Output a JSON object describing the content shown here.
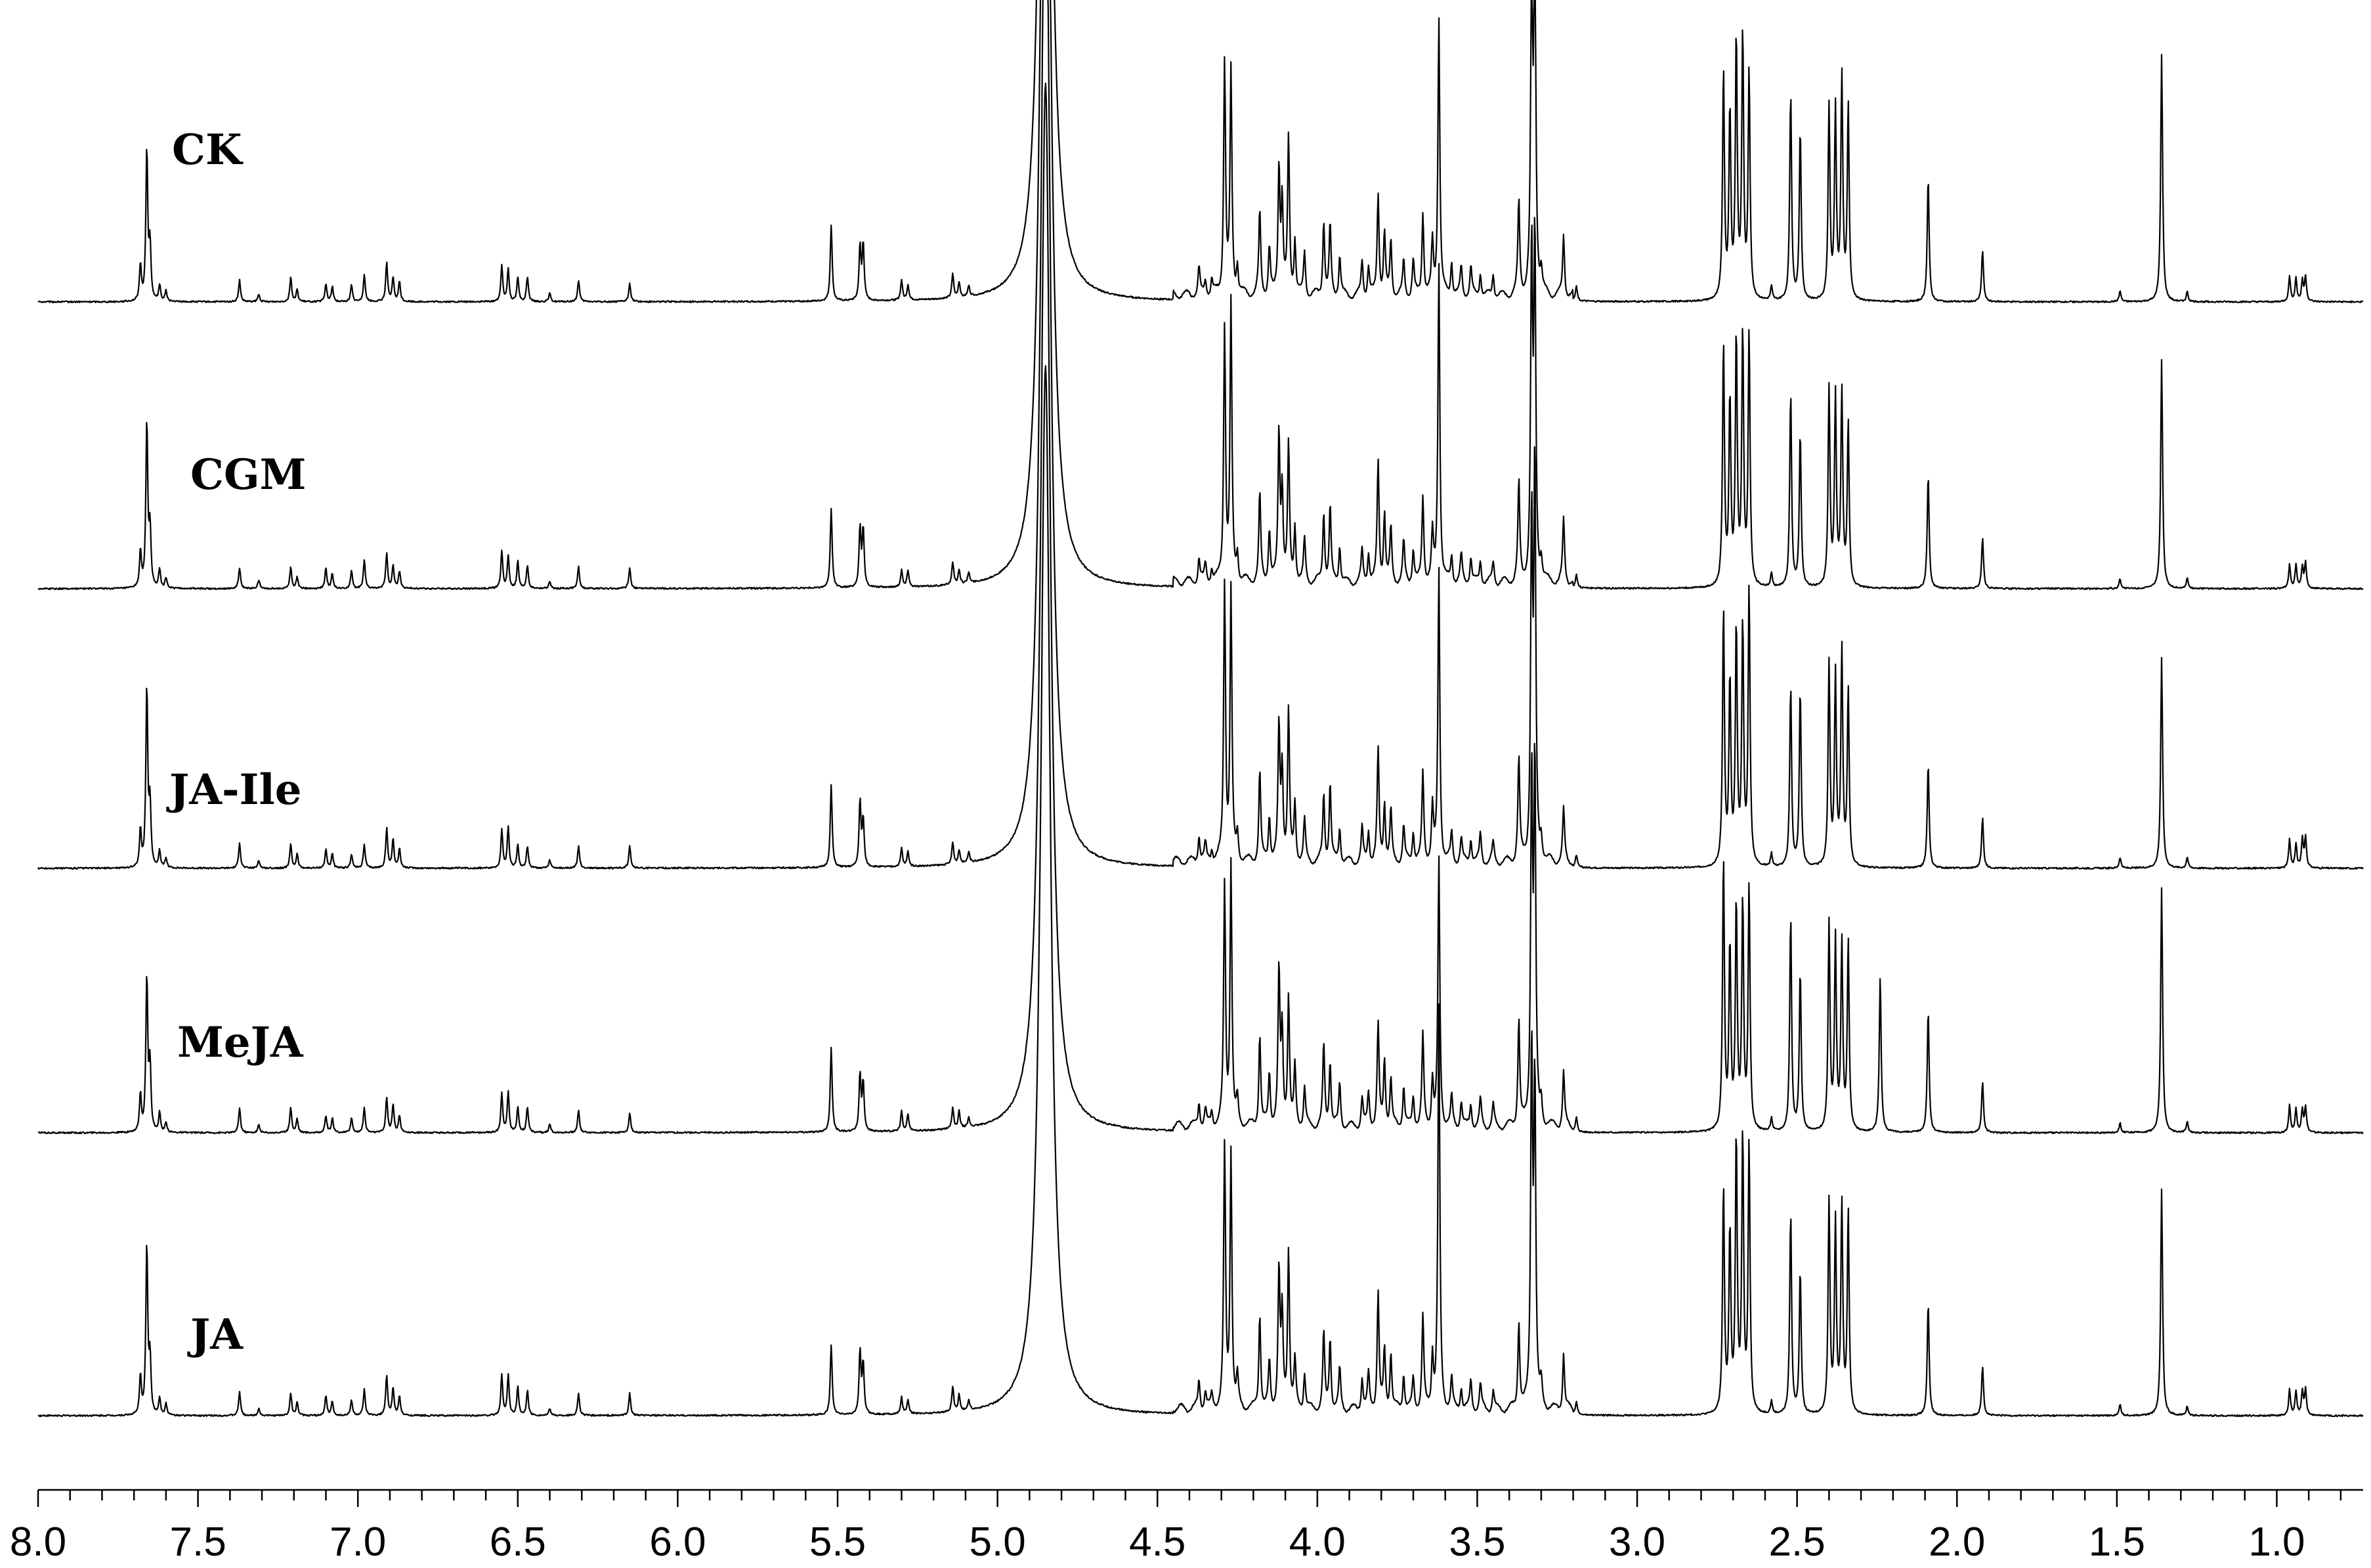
{
  "chart_data": {
    "type": "line",
    "x_axis": {
      "reversed": true,
      "range": [
        8.0,
        0.73
      ],
      "tick_labels": [
        "8.0",
        "7.5",
        "7.0",
        "6.5",
        "6.0",
        "5.5",
        "5.0",
        "4.5",
        "4.0",
        "3.5",
        "3.0",
        "2.5",
        "2.0",
        "1.5",
        "1.0"
      ],
      "tick_values": [
        8.0,
        7.5,
        7.0,
        6.5,
        6.0,
        5.5,
        5.0,
        4.5,
        4.0,
        3.5,
        3.0,
        2.5,
        2.0,
        1.5,
        1.0
      ],
      "minor_tick_step": 0.1
    },
    "grid": false,
    "series": [
      {
        "name": "CK"
      },
      {
        "name": "CGM"
      },
      {
        "name": "JA-Ile"
      },
      {
        "name": "MeJA"
      },
      {
        "name": "JA"
      }
    ],
    "peaks_common": [
      [
        7.68,
        0.14
      ],
      [
        7.66,
        0.62
      ],
      [
        7.65,
        0.22
      ],
      [
        7.62,
        0.07
      ],
      [
        7.6,
        0.04
      ],
      [
        7.37,
        0.09
      ],
      [
        7.31,
        0.03
      ],
      [
        7.21,
        0.09
      ],
      [
        7.19,
        0.05
      ],
      [
        7.1,
        0.07
      ],
      [
        7.08,
        0.06
      ],
      [
        7.02,
        0.06
      ],
      [
        6.98,
        0.1
      ],
      [
        6.91,
        0.14
      ],
      [
        6.89,
        0.1
      ],
      [
        6.87,
        0.07
      ],
      [
        6.55,
        0.14
      ],
      [
        6.53,
        0.14
      ],
      [
        6.5,
        0.1
      ],
      [
        6.47,
        0.09
      ],
      [
        6.4,
        0.03
      ],
      [
        6.31,
        0.09
      ],
      [
        6.15,
        0.08
      ],
      [
        5.52,
        0.29
      ],
      [
        5.43,
        0.23
      ],
      [
        5.42,
        0.2
      ],
      [
        5.3,
        0.07
      ],
      [
        5.28,
        0.06
      ],
      [
        5.14,
        0.09
      ],
      [
        5.12,
        0.06
      ],
      [
        5.09,
        0.04
      ],
      [
        4.37,
        0.1
      ],
      [
        4.35,
        0.06
      ],
      [
        4.33,
        0.05
      ],
      [
        4.29,
        0.95
      ],
      [
        4.27,
        0.95
      ],
      [
        4.25,
        0.1
      ],
      [
        4.18,
        0.35
      ],
      [
        4.15,
        0.2
      ],
      [
        4.12,
        0.55
      ],
      [
        4.11,
        0.35
      ],
      [
        4.09,
        0.55
      ],
      [
        4.07,
        0.2
      ],
      [
        4.04,
        0.15
      ],
      [
        3.98,
        0.28
      ],
      [
        3.96,
        0.28
      ],
      [
        3.93,
        0.15
      ],
      [
        3.86,
        0.12
      ],
      [
        3.84,
        0.12
      ],
      [
        3.81,
        0.42
      ],
      [
        3.79,
        0.25
      ],
      [
        3.77,
        0.2
      ],
      [
        3.73,
        0.15
      ],
      [
        3.7,
        0.12
      ],
      [
        3.67,
        0.32
      ],
      [
        3.64,
        0.2
      ],
      [
        3.62,
        1.1
      ],
      [
        3.58,
        0.12
      ],
      [
        3.55,
        0.1
      ],
      [
        3.52,
        0.1
      ],
      [
        3.49,
        0.1
      ],
      [
        3.45,
        0.08
      ],
      [
        3.37,
        0.38
      ],
      [
        3.33,
        1.35
      ],
      [
        3.32,
        1.35
      ],
      [
        3.3,
        0.08
      ],
      [
        3.23,
        0.22
      ],
      [
        3.19,
        0.05
      ],
      [
        2.73,
        0.95
      ],
      [
        2.71,
        0.7
      ],
      [
        2.69,
        0.95
      ],
      [
        2.67,
        0.95
      ],
      [
        2.65,
        0.95
      ],
      [
        2.58,
        0.05
      ],
      [
        2.52,
        0.78
      ],
      [
        2.49,
        0.62
      ],
      [
        2.4,
        0.78
      ],
      [
        2.38,
        0.8
      ],
      [
        2.36,
        0.78
      ],
      [
        2.34,
        0.7
      ],
      [
        2.09,
        0.45
      ],
      [
        1.92,
        0.18
      ],
      [
        1.49,
        0.04
      ],
      [
        1.36,
        0.86
      ],
      [
        1.28,
        0.04
      ],
      [
        0.96,
        0.1
      ],
      [
        0.94,
        0.1
      ],
      [
        0.92,
        0.08
      ],
      [
        0.91,
        0.1
      ]
    ],
    "water_peak_ppm": 4.85
  }
}
